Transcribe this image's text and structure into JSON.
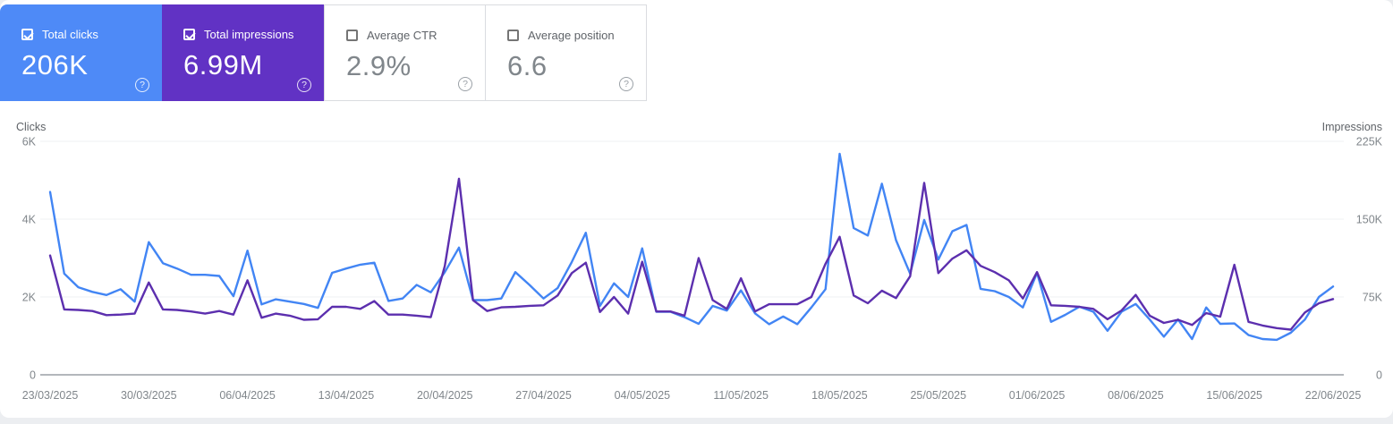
{
  "cards": [
    {
      "label": "Total clicks",
      "value": "206K",
      "checked": true,
      "accent": "#4e8af7"
    },
    {
      "label": "Total impressions",
      "value": "6.99M",
      "checked": true,
      "accent": "#6132c4"
    },
    {
      "label": "Average CTR",
      "value": "2.9%",
      "checked": false,
      "accent": "#ffffff"
    },
    {
      "label": "Average position",
      "value": "6.6",
      "checked": false,
      "accent": "#ffffff"
    }
  ],
  "chart_data": {
    "type": "line",
    "grid": true,
    "legend_position": "none",
    "x_tick_labels": [
      "23/03/2025",
      "30/03/2025",
      "06/04/2025",
      "13/04/2025",
      "20/04/2025",
      "27/04/2025",
      "04/05/2025",
      "11/05/2025",
      "18/05/2025",
      "25/05/2025",
      "01/06/2025",
      "08/06/2025",
      "15/06/2025",
      "22/06/2025"
    ],
    "left_axis": {
      "label": "Clicks",
      "ticks": [
        "0",
        "2K",
        "4K",
        "6K"
      ],
      "tick_values": [
        0,
        2000,
        4000,
        6000
      ],
      "max": 6000
    },
    "right_axis": {
      "label": "Impressions",
      "ticks": [
        "0",
        "75K",
        "150K",
        "225K"
      ],
      "tick_values": [
        0,
        75000,
        150000,
        225000
      ],
      "max": 225000
    },
    "series": [
      {
        "name": "Clicks",
        "axis": "left",
        "color": "#4285f4",
        "values": [
          4700,
          2600,
          2250,
          2130,
          2050,
          2200,
          1880,
          3410,
          2870,
          2730,
          2570,
          2570,
          2540,
          2020,
          3190,
          1810,
          1940,
          1880,
          1820,
          1720,
          2620,
          2730,
          2830,
          2880,
          1900,
          1960,
          2310,
          2120,
          2640,
          3270,
          1920,
          1920,
          1960,
          2640,
          2310,
          1960,
          2230,
          2900,
          3650,
          1770,
          2350,
          2000,
          3250,
          1620,
          1620,
          1480,
          1310,
          1770,
          1650,
          2170,
          1580,
          1300,
          1500,
          1300,
          1730,
          2200,
          5680,
          3770,
          3580,
          4910,
          3460,
          2600,
          3980,
          2960,
          3690,
          3850,
          2210,
          2150,
          2000,
          1730,
          2620,
          1360,
          1540,
          1750,
          1620,
          1130,
          1620,
          1820,
          1420,
          980,
          1420,
          920,
          1730,
          1310,
          1320,
          1020,
          920,
          900,
          1080,
          1420,
          2000,
          2270
        ]
      },
      {
        "name": "Impressions",
        "axis": "right",
        "color": "#5c2fae",
        "values": [
          115000,
          63000,
          62500,
          61500,
          57500,
          58000,
          59000,
          89000,
          63000,
          62500,
          61000,
          59000,
          61500,
          58000,
          91000,
          55000,
          59000,
          57000,
          53000,
          53500,
          65500,
          65500,
          63500,
          71000,
          58000,
          58000,
          57000,
          55500,
          105000,
          189000,
          72000,
          61500,
          65000,
          65500,
          66500,
          67000,
          76500,
          98000,
          108000,
          60500,
          75000,
          59000,
          109000,
          61000,
          61000,
          57000,
          112500,
          72000,
          63500,
          93000,
          61000,
          68000,
          68000,
          68000,
          75000,
          107000,
          133000,
          76500,
          69000,
          81000,
          74000,
          95000,
          185000,
          98000,
          112000,
          120000,
          105000,
          99000,
          91000,
          73500,
          99000,
          67000,
          66500,
          65500,
          63500,
          53500,
          62000,
          77000,
          57000,
          50000,
          53000,
          48000,
          59500,
          56000,
          106000,
          51000,
          47500,
          45000,
          43500,
          60000,
          69000,
          73000
        ]
      }
    ]
  }
}
